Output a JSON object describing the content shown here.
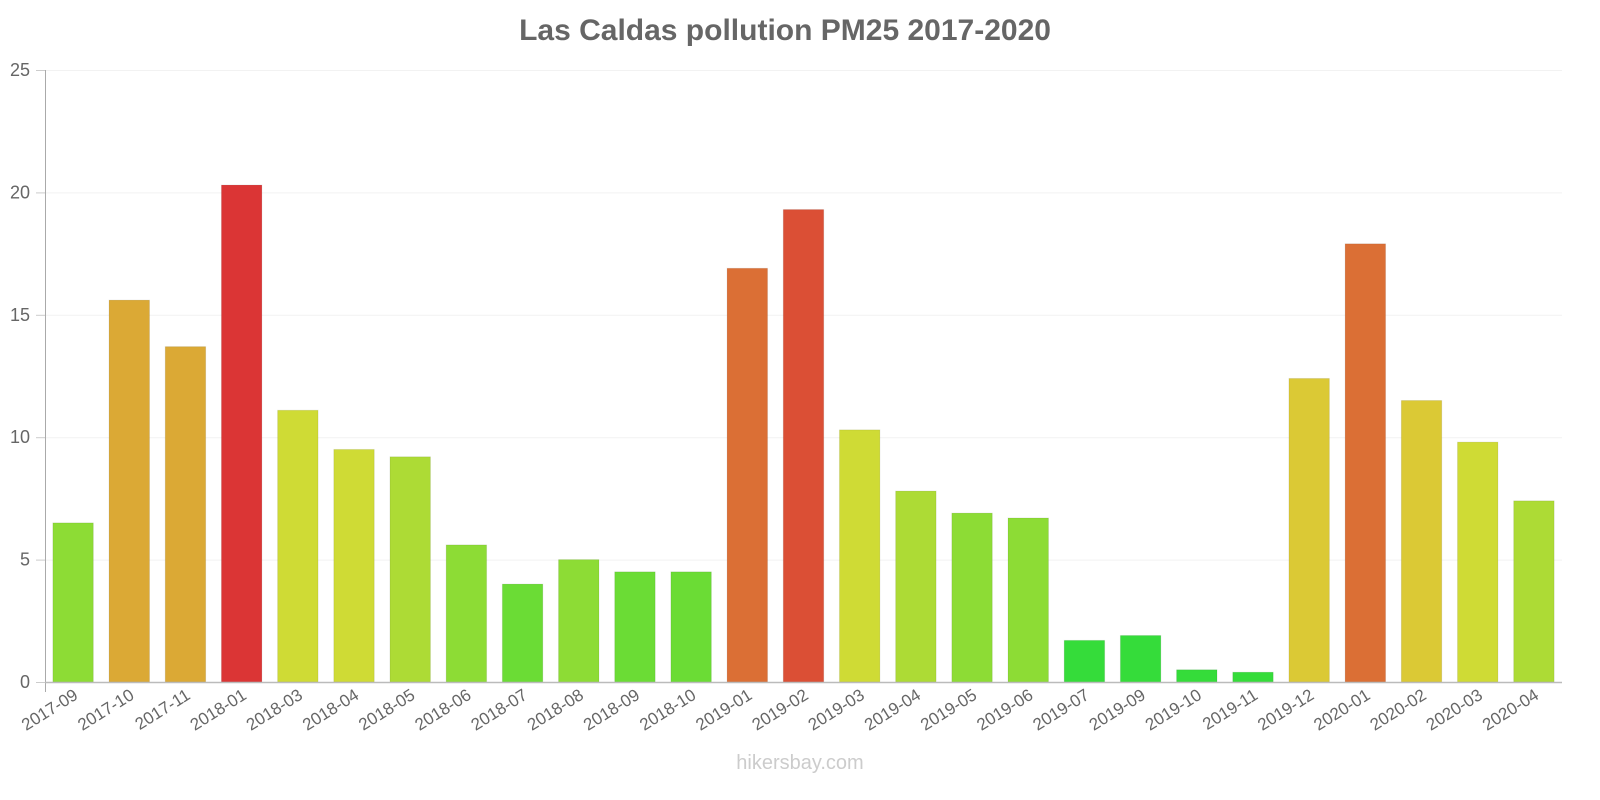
{
  "chart_data": {
    "type": "bar",
    "title": "Las Caldas pollution PM25 2017-2020",
    "xlabel": "",
    "ylabel": "",
    "ylim": [
      0,
      25
    ],
    "yticks": [
      0,
      5,
      10,
      15,
      20,
      25
    ],
    "grid": true,
    "legend": null,
    "categories": [
      "2017-09",
      "2017-10",
      "2017-11",
      "2018-01",
      "2018-03",
      "2018-04",
      "2018-05",
      "2018-06",
      "2018-07",
      "2018-08",
      "2018-09",
      "2018-10",
      "2019-01",
      "2019-02",
      "2019-03",
      "2019-04",
      "2019-05",
      "2019-06",
      "2019-07",
      "2019-09",
      "2019-10",
      "2019-11",
      "2019-12",
      "2020-01",
      "2020-02",
      "2020-03",
      "2020-04"
    ],
    "values": [
      6.5,
      15.6,
      13.7,
      20.3,
      11.1,
      9.5,
      9.2,
      5.6,
      4.0,
      5.0,
      4.5,
      4.5,
      16.9,
      19.3,
      10.3,
      7.8,
      6.9,
      6.7,
      1.7,
      1.9,
      0.5,
      0.4,
      12.4,
      17.9,
      11.5,
      9.8,
      7.4
    ],
    "colors": [
      "#8ddc35",
      "#dba935",
      "#dba935",
      "#db3535",
      "#cfdb35",
      "#cfdb35",
      "#addb35",
      "#8ddc35",
      "#6bdc35",
      "#8ddc35",
      "#6bdc35",
      "#6bdc35",
      "#db6f35",
      "#db4f35",
      "#cfdb35",
      "#addb35",
      "#8ddc35",
      "#8ddc35",
      "#35dc3a",
      "#35dc3a",
      "#35dc3a",
      "#35dc3a",
      "#dbc935",
      "#db6f35",
      "#dbc935",
      "#cfdb35",
      "#addb35"
    ]
  },
  "watermark": "hikersbay.com",
  "colors": {
    "title": "#666666",
    "axis": "#aaaaaa",
    "grid": "#f2f2f2",
    "tick_label": "#666666",
    "watermark": "#cccccc"
  }
}
